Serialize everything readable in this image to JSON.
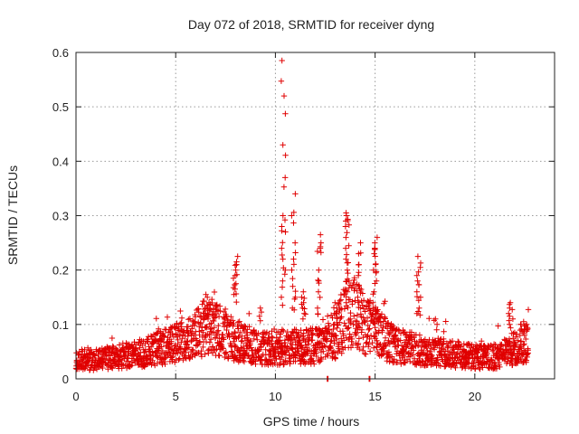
{
  "chart_data": {
    "type": "scatter",
    "title": "Day 072 of 2018, SRMTID for receiver dyng",
    "xlabel": "GPS time / hours",
    "ylabel": "SRMTID / TECUs",
    "xlim": [
      0,
      24
    ],
    "ylim": [
      0,
      0.6
    ],
    "xticks": [
      "0",
      "5",
      "10",
      "15",
      "20"
    ],
    "xtick_values": [
      0,
      5,
      10,
      15,
      20
    ],
    "yticks": [
      "0",
      "0.1",
      "0.2",
      "0.3",
      "0.4",
      "0.5",
      "0.6"
    ],
    "ytick_values": [
      0,
      0.1,
      0.2,
      0.3,
      0.4,
      0.5,
      0.6
    ],
    "grid": true,
    "marker": "+",
    "color": "#e00000",
    "series_name": "SRMTID",
    "x_end": 22.7,
    "baseline_profile": [
      [
        0,
        0.035
      ],
      [
        1,
        0.035
      ],
      [
        2,
        0.04
      ],
      [
        3,
        0.045
      ],
      [
        4,
        0.055
      ],
      [
        5,
        0.065
      ],
      [
        6,
        0.08
      ],
      [
        6.6,
        0.1
      ],
      [
        7.2,
        0.085
      ],
      [
        8,
        0.07
      ],
      [
        9,
        0.06
      ],
      [
        10,
        0.055
      ],
      [
        11,
        0.06
      ],
      [
        12,
        0.06
      ],
      [
        13,
        0.08
      ],
      [
        13.7,
        0.13
      ],
      [
        14.5,
        0.1
      ],
      [
        15.3,
        0.08
      ],
      [
        16,
        0.06
      ],
      [
        17,
        0.055
      ],
      [
        18,
        0.05
      ],
      [
        19,
        0.045
      ],
      [
        20,
        0.04
      ],
      [
        21,
        0.04
      ],
      [
        22,
        0.055
      ],
      [
        22.7,
        0.07
      ]
    ],
    "bursts": [
      {
        "x": 6.6,
        "values": [
          0.15,
          0.14,
          0.135,
          0.13,
          0.12,
          0.155,
          0.11
        ]
      },
      {
        "x": 8.0,
        "values": [
          0.225,
          0.215,
          0.21,
          0.2,
          0.19,
          0.175,
          0.165,
          0.155
        ]
      },
      {
        "x": 9.3,
        "values": [
          0.13,
          0.115
        ]
      },
      {
        "x": 10.4,
        "values": [
          0.585,
          0.52,
          0.43,
          0.37,
          0.3,
          0.28,
          0.27,
          0.24,
          0.22,
          0.2,
          0.18,
          0.15
        ]
      },
      {
        "x": 10.9,
        "values": [
          0.34,
          0.3,
          0.25,
          0.22,
          0.2,
          0.17,
          0.15,
          0.13
        ]
      },
      {
        "x": 11.4,
        "values": [
          0.16,
          0.15,
          0.14,
          0.13,
          0.12
        ]
      },
      {
        "x": 12.2,
        "values": [
          0.265,
          0.25,
          0.24,
          0.2,
          0.18,
          0.16,
          0.13
        ]
      },
      {
        "x": 13.0,
        "values": [
          0.14,
          0.13,
          0.12
        ]
      },
      {
        "x": 13.6,
        "values": [
          0.305,
          0.3,
          0.29,
          0.28,
          0.26,
          0.24,
          0.22,
          0.2,
          0.18,
          0.16,
          0.14
        ]
      },
      {
        "x": 14.2,
        "values": [
          0.25,
          0.23,
          0.21,
          0.19,
          0.17,
          0.15
        ]
      },
      {
        "x": 15.0,
        "values": [
          0.26,
          0.25,
          0.24,
          0.23,
          0.21,
          0.2,
          0.18,
          0.16,
          0.14,
          0.12
        ]
      },
      {
        "x": 17.2,
        "values": [
          0.225,
          0.205,
          0.19,
          0.18,
          0.16,
          0.15,
          0.13,
          0.12
        ]
      },
      {
        "x": 18.0,
        "values": [
          0.11,
          0.1
        ]
      },
      {
        "x": 21.8,
        "values": [
          0.14,
          0.13,
          0.12,
          0.11,
          0.1
        ]
      },
      {
        "x": 22.4,
        "values": [
          0.105,
          0.1,
          0.09
        ]
      }
    ],
    "zero_points": [
      12.6,
      14.7
    ]
  }
}
